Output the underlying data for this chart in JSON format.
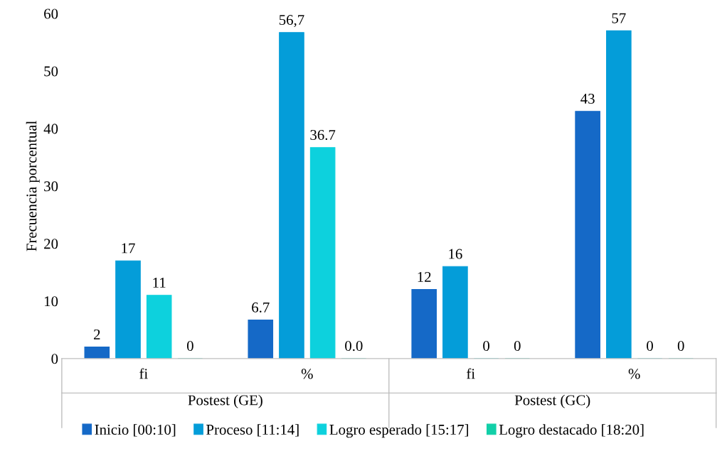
{
  "chart_data": {
    "type": "bar",
    "ylabel": "Frecuencia porcentual",
    "categories": [
      "fi",
      "%",
      "fi",
      "%"
    ],
    "annotations": [
      "Postest (GE)",
      "Postest (GC)"
    ],
    "series": [
      {
        "name": "Inicio [00:10]",
        "color": "#1569c7",
        "values": [
          2,
          6.7,
          12,
          43
        ],
        "value_labels": [
          "2",
          "6.7",
          "12",
          "43"
        ]
      },
      {
        "name": "Proceso [11:14]",
        "color": "#049dd9",
        "values": [
          17,
          56.7,
          16,
          57
        ],
        "value_labels": [
          "17",
          "56,7",
          "16",
          "57"
        ]
      },
      {
        "name": "Logro esperado [15:17]",
        "color": "#0dd1dd",
        "values": [
          11,
          36.7,
          0,
          0
        ],
        "value_labels": [
          "11",
          "36.7",
          "0",
          "0"
        ]
      },
      {
        "name": "Logro destacado [18:20]",
        "color": "#12cfa8",
        "values": [
          0,
          0,
          0,
          0
        ],
        "value_labels": [
          "0",
          "0.0",
          "0",
          "0"
        ]
      }
    ],
    "ylim": [
      0,
      60
    ],
    "yticks": [
      0,
      10,
      20,
      30,
      40,
      50,
      60
    ],
    "grid": false,
    "legend": "bottom"
  }
}
